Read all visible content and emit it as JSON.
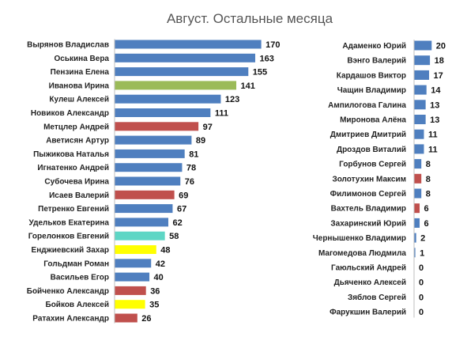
{
  "colors": {
    "blue": "#4f7fbf",
    "green": "#9bbb59",
    "red": "#c0504d",
    "teal": "#5ed6c5",
    "yellow": "#ffff00"
  },
  "chart_data": [
    {
      "type": "bar",
      "orientation": "horizontal",
      "title": "Август. Остальные месяца",
      "xlim": [
        0,
        180
      ],
      "grid": false,
      "categories": [
        "Вырянов Владислав",
        "Оськина Вера",
        "Пензина Елена",
        "Иванова Ирина",
        "Кулеш Алексей",
        "Новиков Александр",
        "Метцлер Андрей",
        "Аветисян Артур",
        "Пыжикова Наталья",
        "Игнатенко Андрей",
        "Субочева Ирина",
        "Исаев Валерий",
        "Петренко Евгений",
        "Удельков Екатерина",
        "Горелoнков Евгений",
        "Енджиевский Захар",
        "Гольдман Роман",
        "Васильев Егор",
        "Бойченко Александр",
        "Бойков Алексей",
        "Ратахин Александр"
      ],
      "values": [
        170,
        163,
        155,
        141,
        123,
        111,
        97,
        89,
        81,
        78,
        76,
        69,
        67,
        62,
        58,
        48,
        42,
        40,
        36,
        35,
        26
      ],
      "bar_colors": [
        "blue",
        "blue",
        "blue",
        "green",
        "blue",
        "blue",
        "red",
        "blue",
        "blue",
        "blue",
        "blue",
        "red",
        "blue",
        "blue",
        "teal",
        "yellow",
        "blue",
        "blue",
        "red",
        "yellow",
        "red"
      ]
    },
    {
      "type": "bar",
      "orientation": "horizontal",
      "xlim": [
        0,
        180
      ],
      "grid": false,
      "categories": [
        "Адаменко Юрий",
        "Вэнго Валерий",
        "Кардашов Виктор",
        "Чащин Владимир",
        "Ампилогова Галина",
        "Миронова Алёна",
        "Дмитриев Дмитрий",
        "Дроздов Виталий",
        "Горбунов Сергей",
        "Золотухин Максим",
        "Филимонов Сергей",
        "Вахтель Владимир",
        "Захаринский Юрий",
        "Чернышенко Владимир",
        "Магомедова Людмила",
        "Гаюльский Андрей",
        "Дьяченко Алексей",
        "Зяблов Сергей",
        "Фарукшин Валерий"
      ],
      "values": [
        20,
        18,
        17,
        14,
        13,
        13,
        11,
        11,
        8,
        8,
        8,
        6,
        6,
        2,
        1,
        0,
        0,
        0,
        0
      ],
      "bar_colors": [
        "blue",
        "blue",
        "blue",
        "blue",
        "blue",
        "blue",
        "blue",
        "blue",
        "blue",
        "red",
        "blue",
        "red",
        "blue",
        "blue",
        "blue",
        "blue",
        "blue",
        "blue",
        "blue"
      ]
    }
  ]
}
